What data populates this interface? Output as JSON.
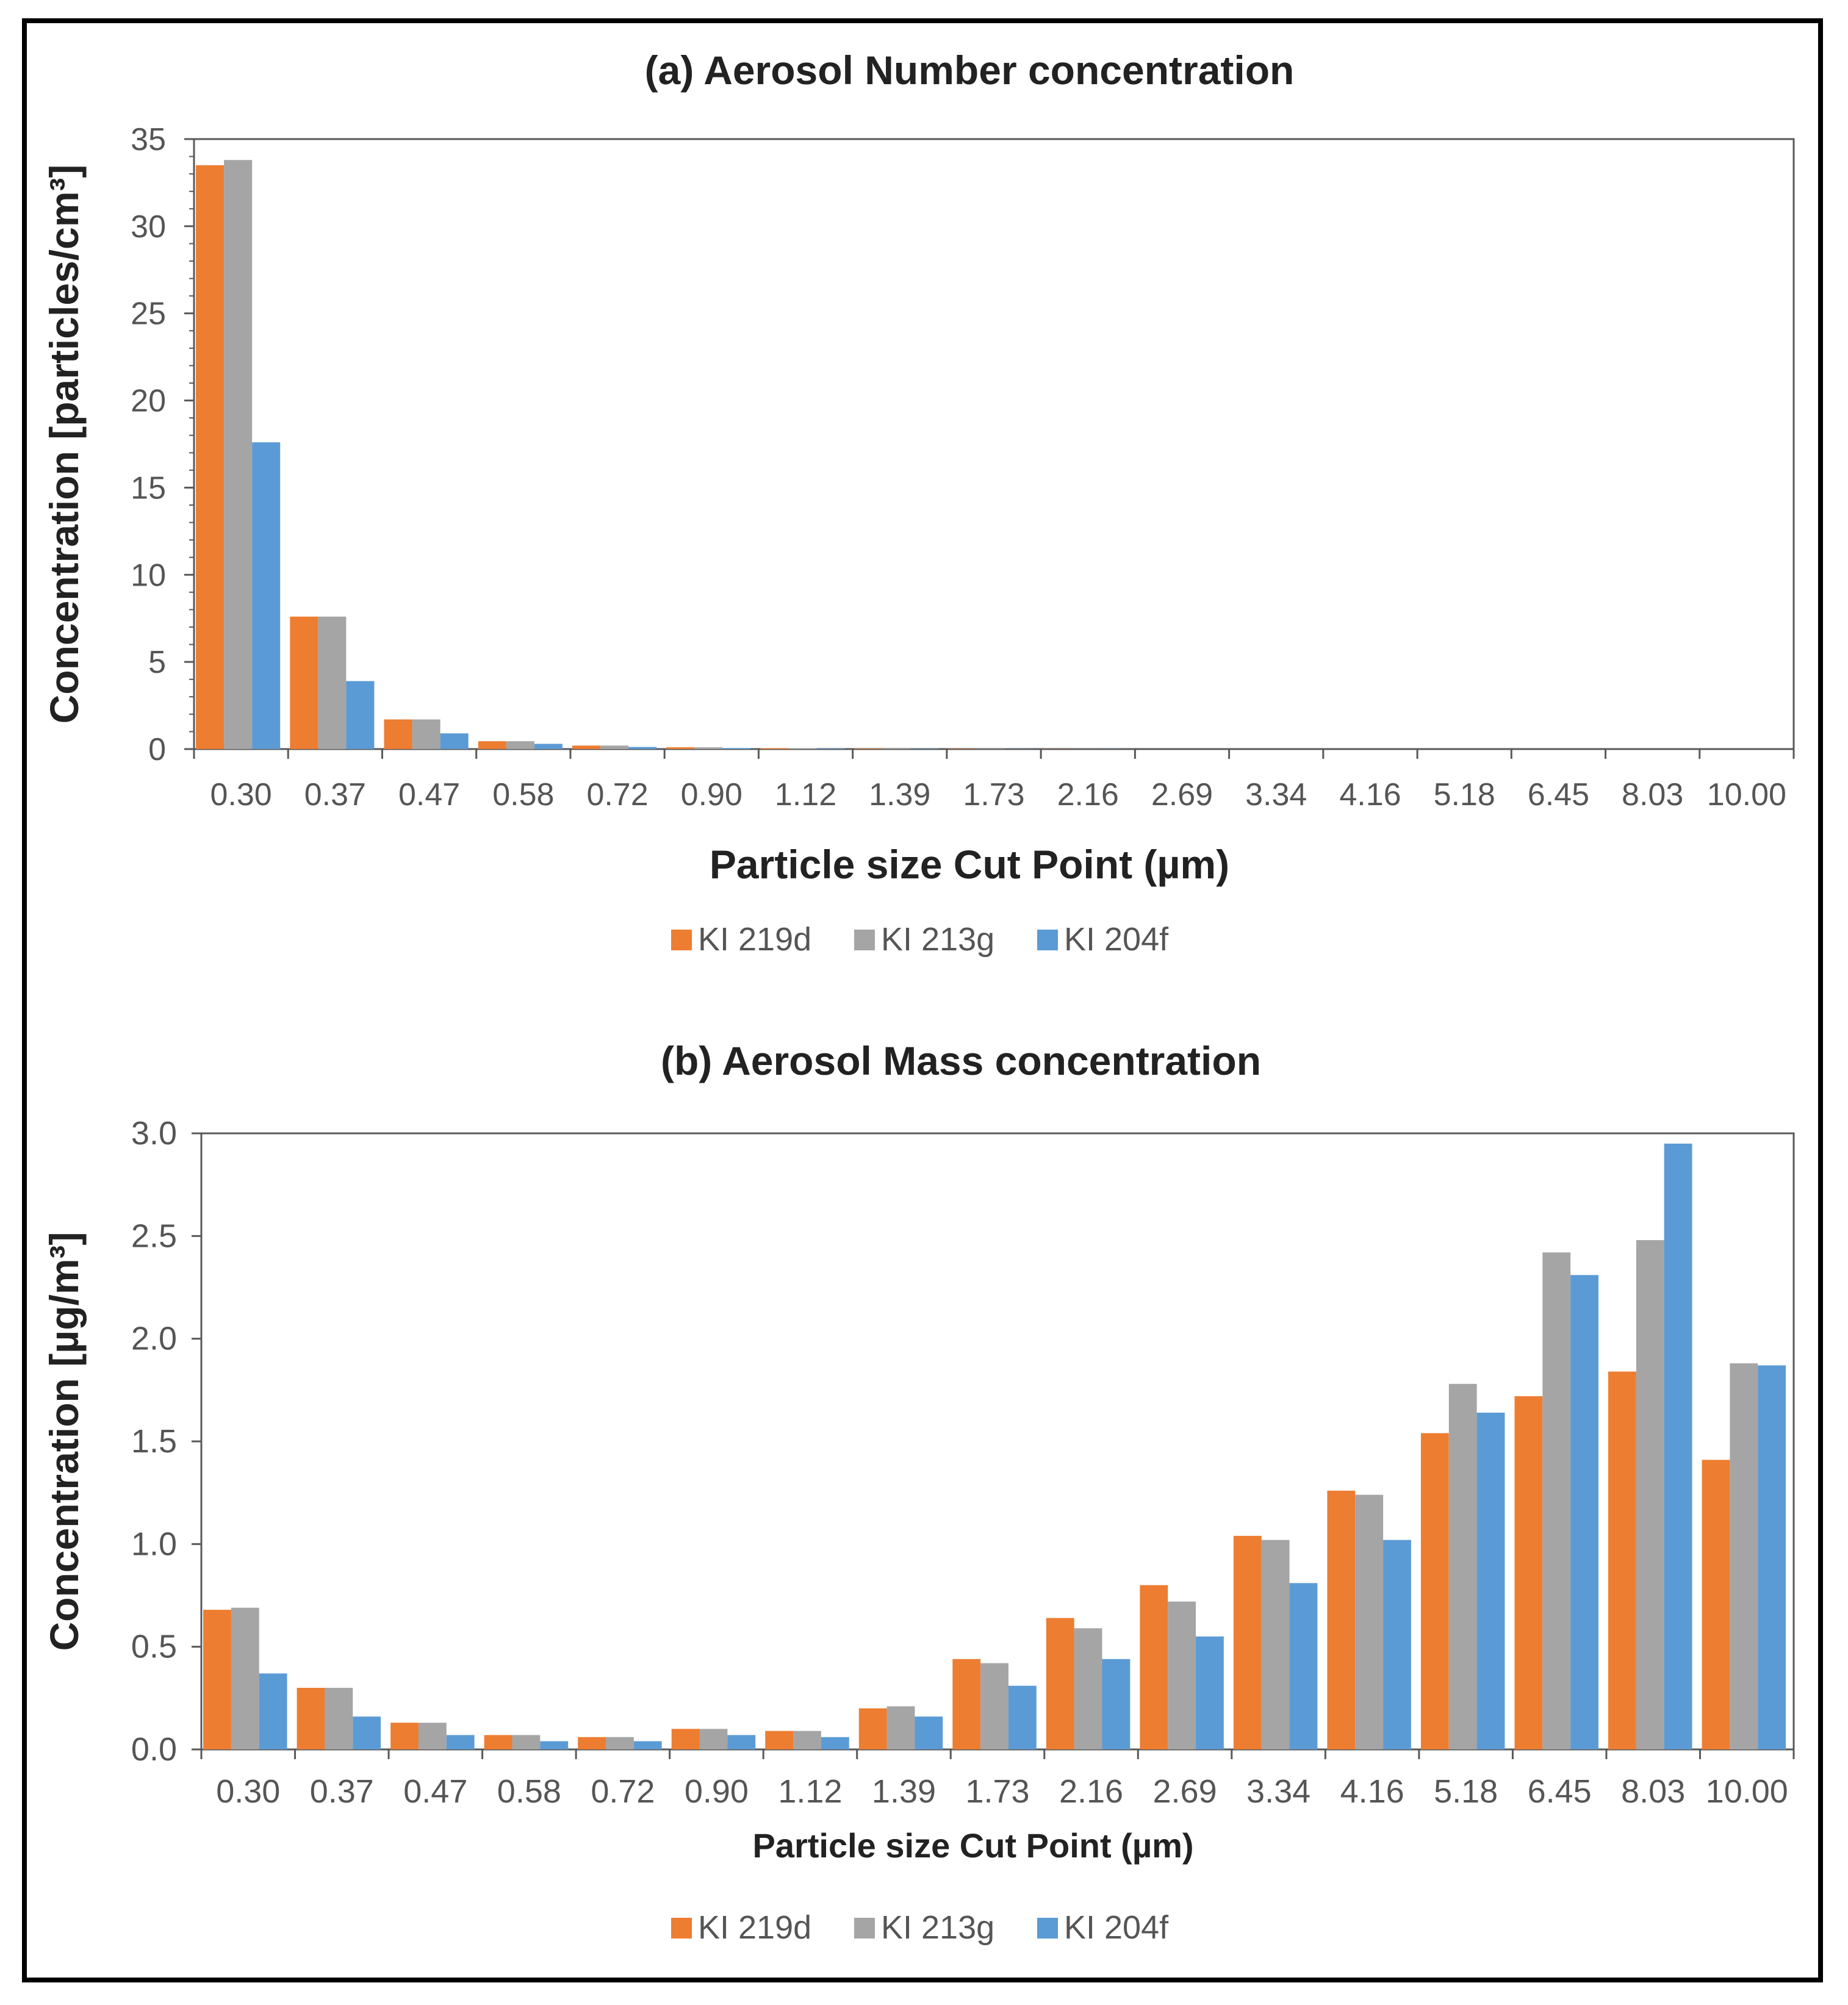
{
  "series_colors": [
    "#ed7d31",
    "#a5a5a5",
    "#5b9bd5"
  ],
  "chart_data": [
    {
      "type": "bar",
      "title": "(a) Aerosol Number concentration",
      "xlabel": "Particle size Cut Point (µm)",
      "ylabel": "Concentration [particles/cm³]",
      "ylim": [
        0,
        35
      ],
      "yticks": [
        "0",
        "5",
        "10",
        "15",
        "20",
        "25",
        "30",
        "35"
      ],
      "categories": [
        "0.30",
        "0.37",
        "0.47",
        "0.58",
        "0.72",
        "0.90",
        "1.12",
        "1.39",
        "1.73",
        "2.16",
        "2.69",
        "3.34",
        "4.16",
        "5.18",
        "6.45",
        "8.03",
        "10.00"
      ],
      "legend_position": "bottom",
      "grid": false,
      "series": [
        {
          "name": "KI 219d",
          "values": [
            33.5,
            7.6,
            1.7,
            0.45,
            0.2,
            0.1,
            0.05,
            0.03,
            0.02,
            0.01,
            0,
            0,
            0,
            0,
            0,
            0,
            0
          ]
        },
        {
          "name": "KI 213g",
          "values": [
            33.8,
            7.6,
            1.7,
            0.45,
            0.2,
            0.1,
            0.05,
            0.03,
            0.02,
            0.01,
            0,
            0,
            0,
            0,
            0,
            0,
            0
          ]
        },
        {
          "name": "KI 204f",
          "values": [
            17.6,
            3.9,
            0.9,
            0.3,
            0.12,
            0.06,
            0.03,
            0.02,
            0.01,
            0.01,
            0,
            0,
            0,
            0,
            0,
            0,
            0
          ]
        }
      ]
    },
    {
      "type": "bar",
      "title": "(b) Aerosol Mass concentration",
      "xlabel": "Particle size Cut Point (µm)",
      "ylabel": "Concentration [µg/m³]",
      "ylim": [
        0,
        3.0
      ],
      "yticks": [
        "0.0",
        "0.5",
        "1.0",
        "1.5",
        "2.0",
        "2.5",
        "3.0"
      ],
      "categories": [
        "0.30",
        "0.37",
        "0.47",
        "0.58",
        "0.72",
        "0.90",
        "1.12",
        "1.39",
        "1.73",
        "2.16",
        "2.69",
        "3.34",
        "4.16",
        "5.18",
        "6.45",
        "8.03",
        "10.00"
      ],
      "legend_position": "bottom",
      "grid": false,
      "series": [
        {
          "name": "KI 219d",
          "values": [
            0.68,
            0.3,
            0.13,
            0.07,
            0.06,
            0.1,
            0.09,
            0.2,
            0.44,
            0.64,
            0.8,
            1.04,
            1.26,
            1.54,
            1.72,
            1.84,
            1.41
          ]
        },
        {
          "name": "KI 213g",
          "values": [
            0.69,
            0.3,
            0.13,
            0.07,
            0.06,
            0.1,
            0.09,
            0.21,
            0.42,
            0.59,
            0.72,
            1.02,
            1.24,
            1.78,
            2.42,
            2.48,
            1.88
          ]
        },
        {
          "name": "KI 204f",
          "values": [
            0.37,
            0.16,
            0.07,
            0.04,
            0.04,
            0.07,
            0.06,
            0.16,
            0.31,
            0.44,
            0.55,
            0.81,
            1.02,
            1.64,
            2.31,
            2.95,
            1.87
          ]
        }
      ]
    }
  ]
}
